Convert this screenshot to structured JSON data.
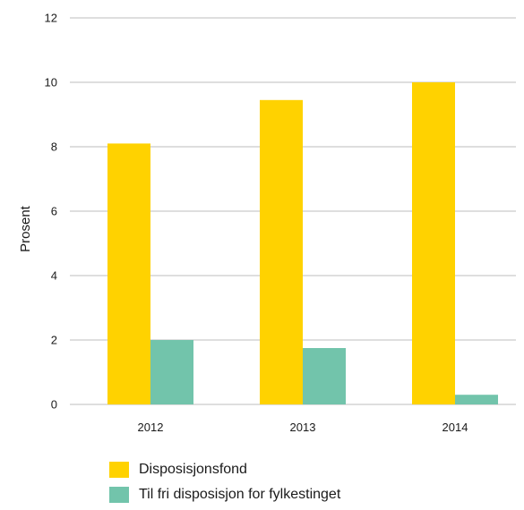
{
  "chart_data": {
    "type": "bar",
    "categories": [
      "2012",
      "2013",
      "2014"
    ],
    "series": [
      {
        "name": "Disposisjonsfond",
        "values": [
          8.1,
          9.45,
          10.0
        ],
        "color": "#ffd200"
      },
      {
        "name": "Til fri disposisjon for fylkestinget",
        "values": [
          2.0,
          1.75,
          0.3
        ],
        "color": "#72c4ab"
      }
    ],
    "ylabel": "Prosent",
    "xlabel": "",
    "ylim": [
      0,
      12
    ],
    "yticks": [
      "0",
      "2",
      "4",
      "6",
      "8",
      "10",
      "12"
    ],
    "grid": true,
    "legend_position": "bottom-left"
  }
}
